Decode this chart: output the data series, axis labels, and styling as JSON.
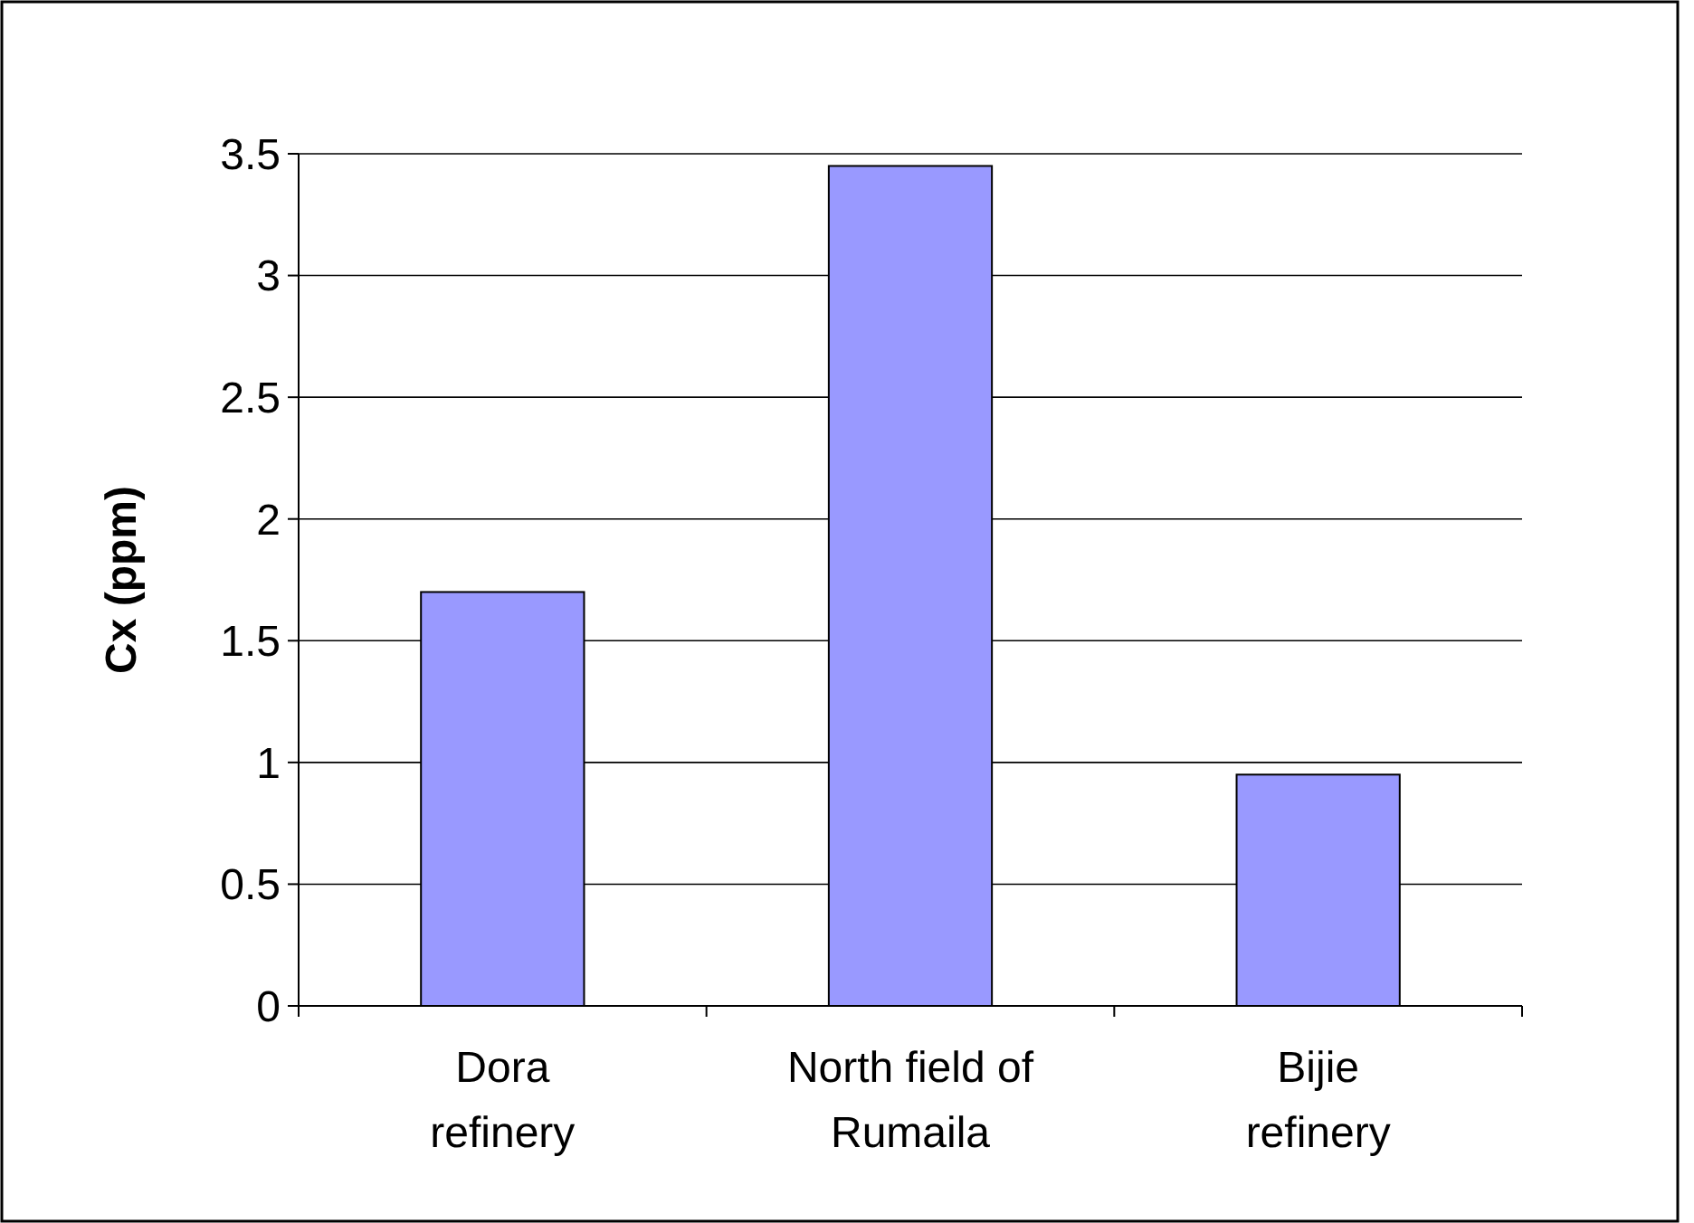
{
  "chart_data": {
    "type": "bar",
    "ylabel": "Cx (ppm)",
    "categories": [
      "Dora refinery",
      "North field of Rumaila",
      "Bijie refinery"
    ],
    "values": [
      1.7,
      3.45,
      0.95
    ],
    "color": "#9999ff",
    "ylim": [
      0,
      3.5
    ],
    "yticks": [
      0,
      0.5,
      1,
      1.5,
      2,
      2.5,
      3,
      3.5
    ],
    "grid": "y"
  }
}
